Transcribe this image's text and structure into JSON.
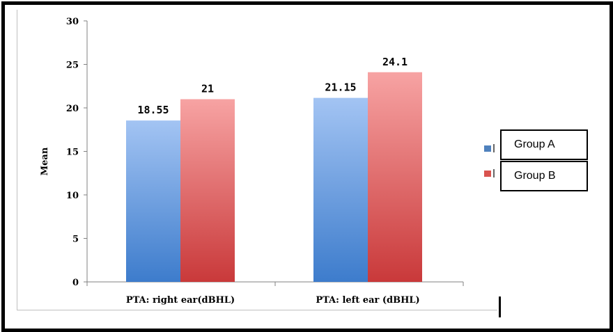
{
  "chart_data": {
    "type": "bar",
    "categories": [
      "PTA: right ear(dBHL)",
      "PTA: left ear (dBHL)"
    ],
    "series": [
      {
        "name": "Group A",
        "values": [
          18.55,
          21.15
        ],
        "color": "#4f81bd"
      },
      {
        "name": "Group B",
        "values": [
          21,
          24.1
        ],
        "color": "#c0504d"
      }
    ],
    "value_labels": [
      [
        "18.55",
        "21.15"
      ],
      [
        "21",
        "24.1"
      ]
    ],
    "ylabel": "Mean",
    "xlabel": "",
    "ylim": [
      0,
      30
    ],
    "yticks": [
      0,
      5,
      10,
      15,
      20,
      25,
      30
    ],
    "grid": false,
    "legend_position": "right"
  },
  "legend": {
    "items": [
      {
        "label": "Group A",
        "swatch_color": "#4f81bd"
      },
      {
        "label": "Group B",
        "swatch_color": "#d9534f"
      }
    ]
  }
}
